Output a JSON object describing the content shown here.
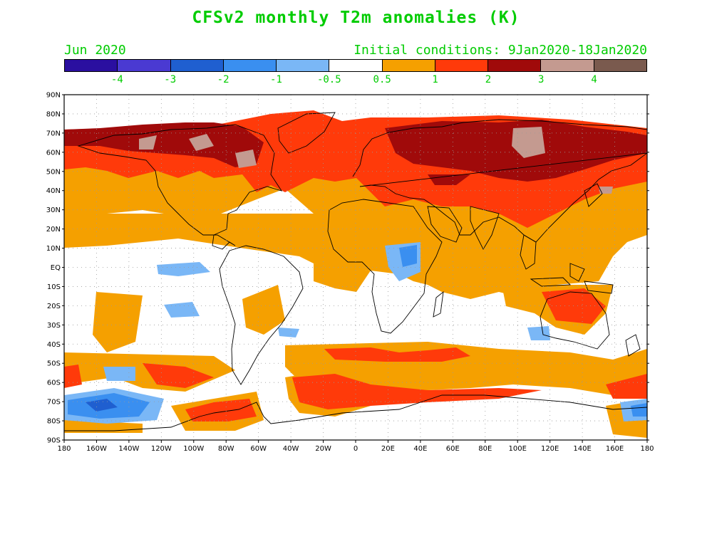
{
  "header": {
    "title": "CFSv2 monthly T2m anomalies (K)",
    "valid_month": "Jun 2020",
    "initial_conditions": "Initial conditions: 9Jan2020-18Jan2020"
  },
  "colorbar": {
    "colors": [
      "#2a0fa0",
      "#4a3ad2",
      "#1f5fd0",
      "#3a8ff0",
      "#7ab7f6",
      "#ffffff",
      "#f5a000",
      "#ff3a0a",
      "#a00a0a",
      "#c49a90",
      "#7a5a4e"
    ],
    "labels": [
      "-4",
      "-3",
      "-2",
      "-1",
      "-0.5",
      "0.5",
      "1",
      "2",
      "3",
      "4"
    ]
  },
  "axes": {
    "lat_labels": [
      "90N",
      "80N",
      "70N",
      "60N",
      "50N",
      "40N",
      "30N",
      "20N",
      "10N",
      "EQ",
      "10S",
      "20S",
      "30S",
      "40S",
      "50S",
      "60S",
      "70S",
      "80S",
      "90S"
    ],
    "lon_labels": [
      "180",
      "160W",
      "140W",
      "120W",
      "100W",
      "80W",
      "60W",
      "40W",
      "20W",
      "0",
      "20E",
      "40E",
      "60E",
      "80E",
      "100E",
      "120E",
      "140E",
      "160E",
      "180"
    ]
  }
}
